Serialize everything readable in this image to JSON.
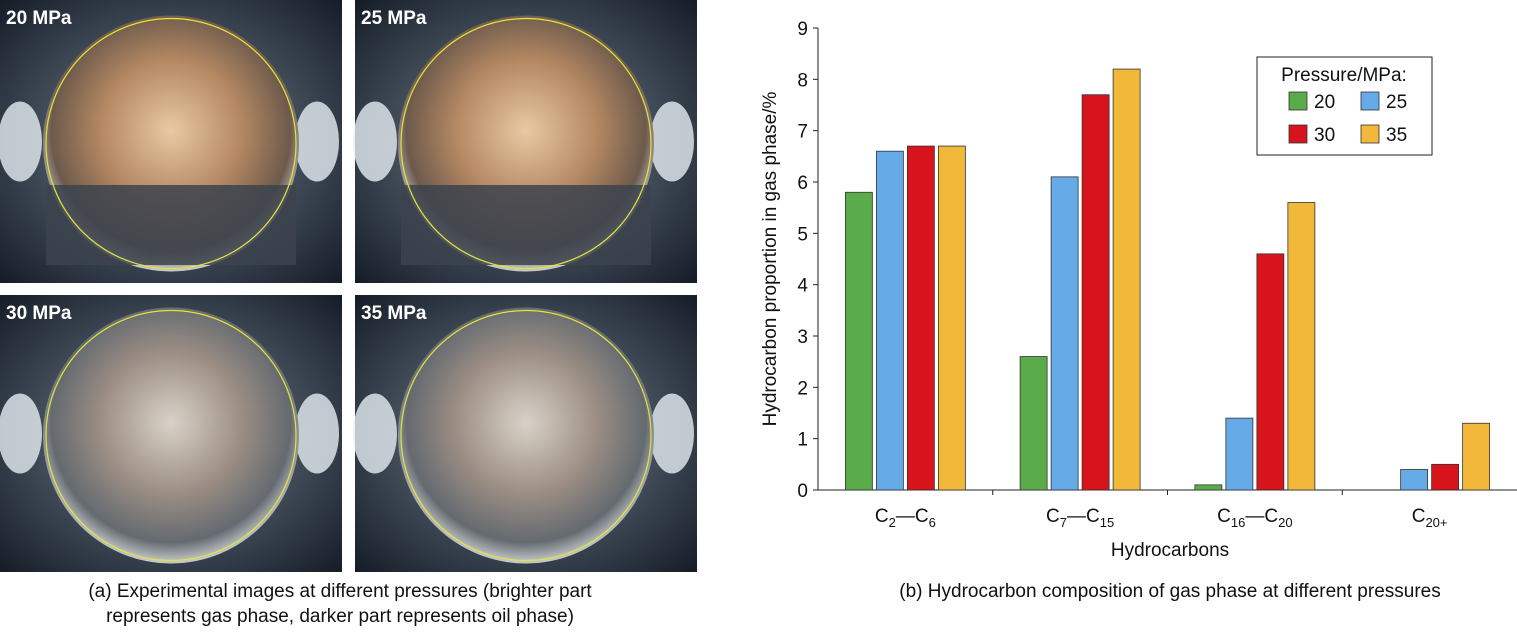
{
  "images": [
    {
      "label": "20 MPa"
    },
    {
      "label": "25 MPa"
    },
    {
      "label": "30 MPa"
    },
    {
      "label": "35 MPa"
    }
  ],
  "caption_a": [
    "(a) Experimental images at different pressures (brighter part",
    "represents gas phase, darker part represents oil phase)"
  ],
  "chart_data": {
    "type": "bar",
    "caption": "(b) Hydrocarbon composition of gas phase at different pressures",
    "x_label": "Hydrocarbons",
    "y_label": "Hydrocarbon proportion in gas phase/%",
    "categories": [
      [
        "C",
        "2",
        "—C",
        "6"
      ],
      [
        "C",
        "7",
        "—C",
        "15"
      ],
      [
        "C",
        "16",
        "—C",
        "20"
      ],
      [
        "C",
        "20+"
      ]
    ],
    "legend_title": "Pressure/MPa:",
    "legend_position": "upper right",
    "series": [
      {
        "name": "20",
        "color": "#5aab4a",
        "values": [
          5.8,
          2.6,
          0.1,
          null
        ]
      },
      {
        "name": "25",
        "color": "#66aae8",
        "values": [
          6.6,
          6.1,
          1.4,
          0.4
        ]
      },
      {
        "name": "30",
        "color": "#d7141c",
        "values": [
          6.7,
          7.7,
          4.6,
          0.5
        ]
      },
      {
        "name": "35",
        "color": "#f1b83a",
        "values": [
          6.7,
          8.2,
          5.6,
          1.3
        ]
      }
    ],
    "ylim": [
      0,
      9
    ],
    "yticks": [
      0,
      1,
      2,
      3,
      4,
      5,
      6,
      7,
      8,
      9
    ]
  }
}
